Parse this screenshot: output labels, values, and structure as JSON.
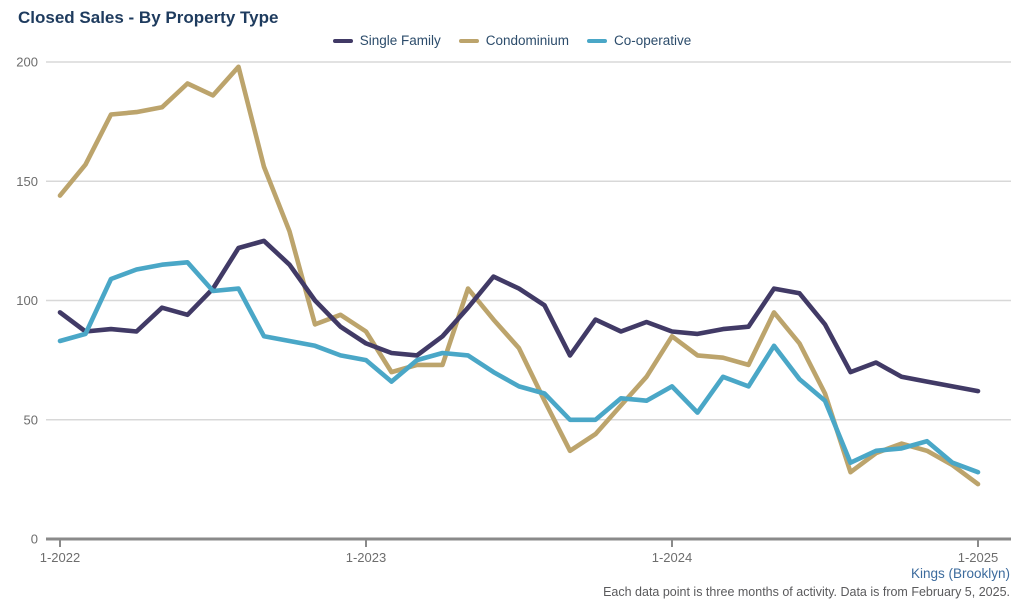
{
  "title": "Closed Sales - By Property Type",
  "footer": {
    "region": "Kings (Brooklyn)",
    "note": "Each data point is three months of activity. Data is from February 5, 2025."
  },
  "colors": {
    "title_text": "#1e3b5e",
    "legend_text": "#2c4c6b",
    "axis_text": "#6d6d6d",
    "gridline": "#d8d8d8",
    "axis_line": "#8a8a8a",
    "region_link": "#3c6b9d",
    "note_text": "#5a5a5c"
  },
  "chart_data": {
    "type": "line",
    "title": "Closed Sales - By Property Type",
    "grid": true,
    "legend_position": "top",
    "y_axis": {
      "min": 0,
      "max": 200,
      "ticks": [
        0,
        50,
        100,
        150,
        200
      ]
    },
    "x_axis": {
      "ticks": [
        "1-2022",
        "1-2023",
        "1-2024",
        "1-2025"
      ],
      "points_per_year": 12,
      "note": "monthly points, each = rolling three months of activity"
    },
    "draw_order": [
      1,
      0,
      2
    ],
    "series": [
      {
        "name": "Single Family",
        "color": "#413a66",
        "values": [
          95,
          87,
          88,
          87,
          97,
          94,
          105,
          122,
          125,
          115,
          100,
          89,
          82,
          78,
          77,
          85,
          97,
          110,
          105,
          98,
          77,
          92,
          87,
          91,
          87,
          86,
          88,
          89,
          105,
          103,
          90,
          70,
          74,
          68,
          66,
          64,
          62
        ]
      },
      {
        "name": "Condominium",
        "color": "#bca46c",
        "values": [
          144,
          157,
          178,
          179,
          181,
          191,
          186,
          198,
          156,
          129,
          90,
          94,
          87,
          70,
          73,
          73,
          105,
          92,
          80,
          58,
          37,
          44,
          56,
          68,
          85,
          77,
          76,
          73,
          95,
          82,
          61,
          28,
          36,
          40,
          37,
          31,
          23
        ]
      },
      {
        "name": "Co-operative",
        "color": "#4aa7c7",
        "values": [
          83,
          86,
          109,
          113,
          115,
          116,
          104,
          105,
          85,
          83,
          81,
          77,
          75,
          66,
          75,
          78,
          77,
          70,
          64,
          61,
          50,
          50,
          59,
          58,
          64,
          53,
          68,
          64,
          81,
          67,
          58,
          32,
          37,
          38,
          41,
          32,
          28
        ]
      }
    ]
  }
}
